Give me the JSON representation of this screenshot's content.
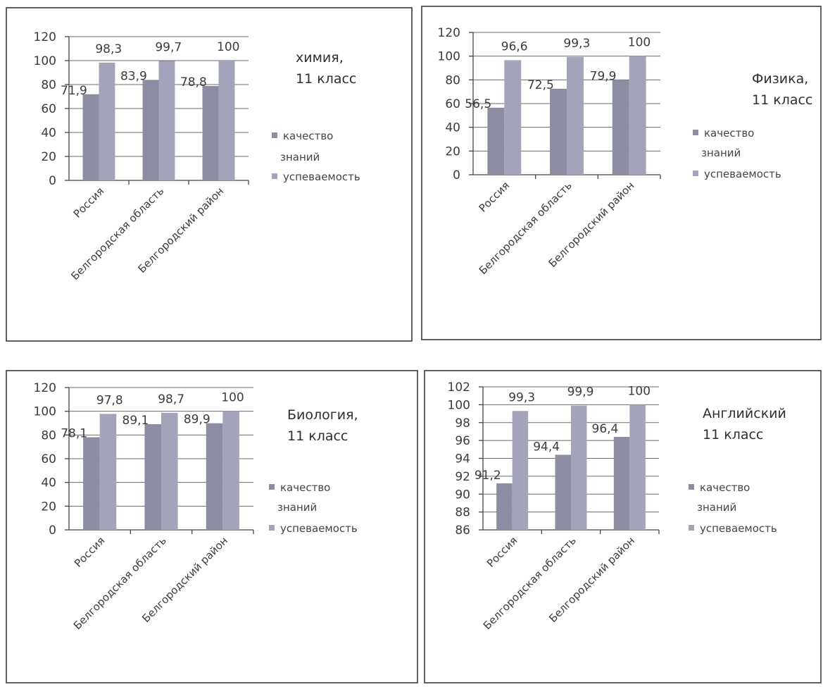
{
  "colors": {
    "bar_quality": "#8d8da2",
    "bar_success": "#a3a3b9",
    "frame": "#3a3a3a",
    "text": "#3c3c3c"
  },
  "chart_data": [
    {
      "type": "bar",
      "title_lines": [
        "химия,",
        "11 класс"
      ],
      "categories": [
        "Россия",
        "Белгородская область",
        "Белгородский район"
      ],
      "series": [
        {
          "name": "качество знаний",
          "values": [
            71.9,
            83.9,
            78.8
          ]
        },
        {
          "name": "успеваемость",
          "values": [
            98.3,
            99.7,
            100
          ]
        }
      ],
      "ylim": [
        0,
        120
      ],
      "yticks": [
        "0",
        "20",
        "40",
        "60",
        "80",
        "100",
        "120"
      ],
      "value_labels": [
        [
          "71,9",
          "83,9",
          "78,8"
        ],
        [
          "98,3",
          "99,7",
          "100"
        ]
      ],
      "legend_lines": [
        [
          "качество",
          "знаний"
        ],
        [
          "успеваемость"
        ]
      ],
      "legend_position": "right",
      "grid": true
    },
    {
      "type": "bar",
      "title_lines": [
        "Физика,",
        "11 класс"
      ],
      "categories": [
        "Россия",
        "Белгородская область",
        "Белгородский район"
      ],
      "series": [
        {
          "name": "качество знаний",
          "values": [
            56.5,
            72.5,
            79.9
          ]
        },
        {
          "name": "успеваемость",
          "values": [
            96.6,
            99.3,
            100
          ]
        }
      ],
      "ylim": [
        0,
        120
      ],
      "yticks": [
        "0",
        "20",
        "40",
        "60",
        "80",
        "100",
        "120"
      ],
      "value_labels": [
        [
          "56,5",
          "72,5",
          "79,9"
        ],
        [
          "96,6",
          "99,3",
          "100"
        ]
      ],
      "legend_lines": [
        [
          "качество",
          "знаний"
        ],
        [
          "успеваемость"
        ]
      ],
      "legend_position": "right",
      "grid": true
    },
    {
      "type": "bar",
      "title_lines": [
        "Биология,",
        "11 класс"
      ],
      "categories": [
        "Россия",
        "Белгородская область",
        "Белгородский район"
      ],
      "series": [
        {
          "name": "качество знаний",
          "values": [
            78.1,
            89.1,
            89.9
          ]
        },
        {
          "name": "успеваемость",
          "values": [
            97.8,
            98.7,
            100
          ]
        }
      ],
      "ylim": [
        0,
        120
      ],
      "yticks": [
        "0",
        "20",
        "40",
        "60",
        "80",
        "100",
        "120"
      ],
      "value_labels": [
        [
          "78,1",
          "89,1",
          "89,9"
        ],
        [
          "97,8",
          "98,7",
          "100"
        ]
      ],
      "legend_lines": [
        [
          "качество",
          "знаний"
        ],
        [
          "успеваемость"
        ]
      ],
      "legend_position": "right",
      "grid": true
    },
    {
      "type": "bar",
      "title_lines": [
        "Английский",
        "11 класс"
      ],
      "categories": [
        "Россия",
        "Белгородская область",
        "Белгородский район"
      ],
      "series": [
        {
          "name": "качество знаний",
          "values": [
            91.2,
            94.4,
            96.4
          ]
        },
        {
          "name": "успеваемость",
          "values": [
            99.3,
            99.9,
            100
          ]
        }
      ],
      "ylim": [
        86,
        102
      ],
      "yticks": [
        "86",
        "88",
        "90",
        "92",
        "94",
        "96",
        "98",
        "100",
        "102"
      ],
      "value_labels": [
        [
          "91,2",
          "94,4",
          "96,4"
        ],
        [
          "99,3",
          "99,9",
          "100"
        ]
      ],
      "legend_lines": [
        [
          "качество",
          "знаний"
        ],
        [
          "успеваемость"
        ]
      ],
      "legend_position": "right",
      "grid": true
    }
  ]
}
